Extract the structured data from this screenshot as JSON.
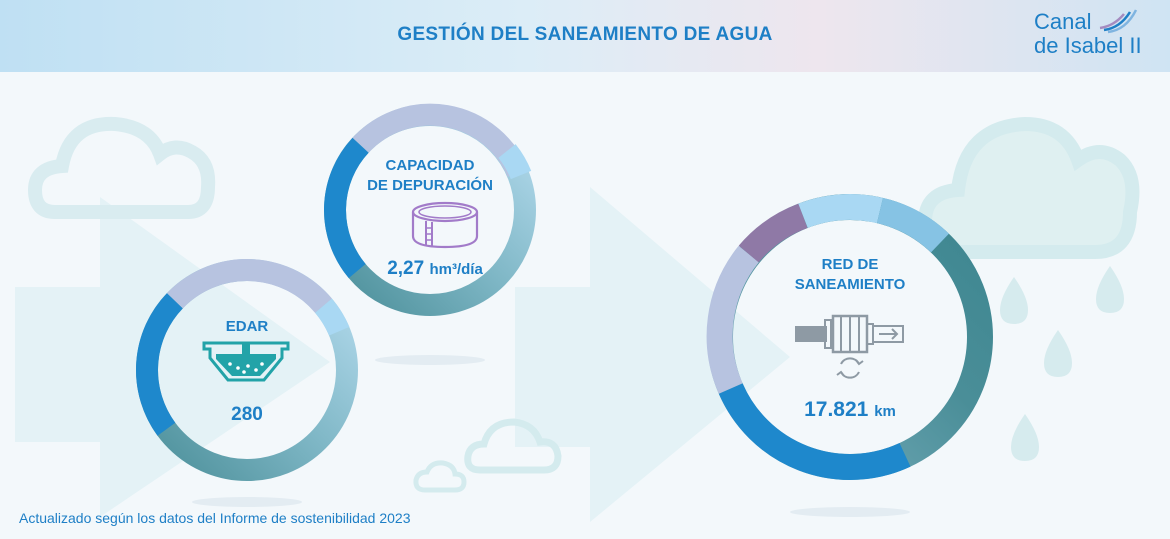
{
  "header": {
    "title": "GESTIÓN DEL SANEAMIENTO DE AGUA"
  },
  "logo": {
    "line1": "Canal",
    "line2": "de Isabel II"
  },
  "cards": {
    "edar": {
      "label": "EDAR",
      "value": "280",
      "icon": "water-treatment-tank-icon"
    },
    "capacidad": {
      "label_line1": "CAPACIDAD",
      "label_line2": "DE DEPURACIÓN",
      "value": "2,27",
      "unit": "hm³/día",
      "icon": "cylinder-tank-icon"
    },
    "red": {
      "label_line1": "RED DE",
      "label_line2": "SANEAMIENTO",
      "value": "17.821",
      "unit": "km",
      "icon": "pipe-filter-icon"
    }
  },
  "footer": {
    "note": "Actualizado según los datos del Informe de sostenibilidad 2023"
  },
  "colors": {
    "primary": "#1e7fc6",
    "teal": "#3a8a94",
    "lavender": "#b7c3e0",
    "sky": "#a9d8f3",
    "purple": "#8f79a6"
  }
}
